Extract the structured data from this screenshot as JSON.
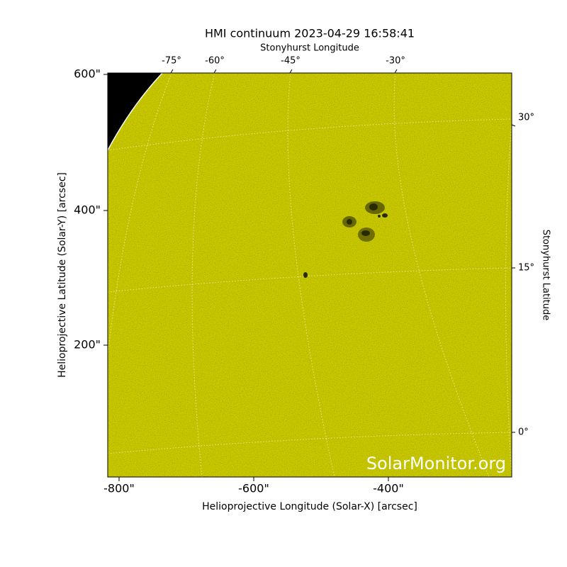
{
  "title": "HMI continuum 2023-04-29 16:58:41",
  "axes": {
    "x_label": "Helioprojective Longitude (Solar-X) [arcsec]",
    "y_label": "Helioprojective Latitude (Solar-Y) [arcsec]",
    "top_label": "Stonyhurst Longitude",
    "right_label": "Stonyhurst Latitude",
    "x_ticks": [
      "-800\"",
      "-600\"",
      "-400\""
    ],
    "y_ticks": [
      "600\"",
      "400\"",
      "200\""
    ],
    "top_ticks": [
      "-75°",
      "-60°",
      "-45°",
      "-30°"
    ],
    "right_ticks": [
      "30°",
      "15°",
      "0°"
    ]
  },
  "watermark": "SolarMonitor.org"
}
